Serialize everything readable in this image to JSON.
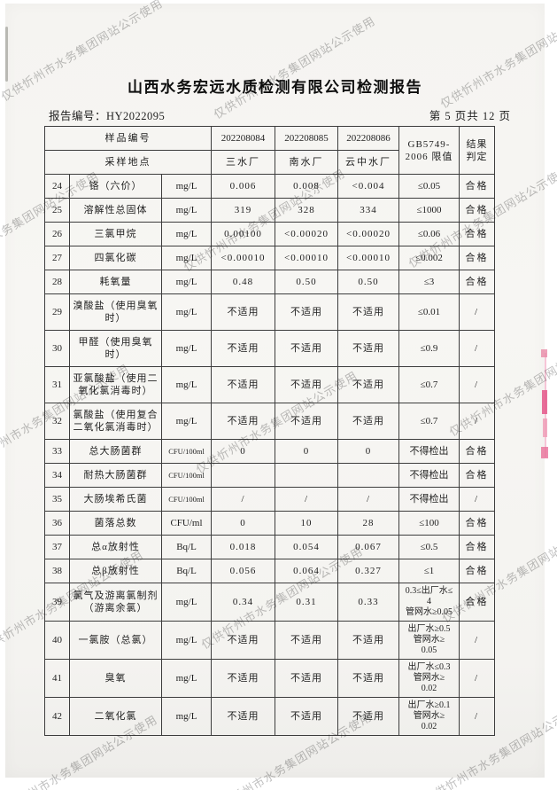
{
  "watermark": {
    "text": "仅供忻州市水务集团网站公示使用",
    "color": "#808080"
  },
  "header": {
    "title": "山西水务宏远水质检测有限公司检测报告",
    "report_no": "报告编号：HY2022095",
    "page_info": "第 5 页共 12 页"
  },
  "table": {
    "header": {
      "row1_label": "样品编号",
      "row2_label": "采样地点",
      "sample_ids": [
        "202208084",
        "202208085",
        "202208086"
      ],
      "locations": [
        "三水厂",
        "南水厂",
        "云中水厂"
      ],
      "limit_line1": "GB5749-",
      "limit_line2": "2006 限值",
      "result_line1": "结果",
      "result_line2": "判定"
    },
    "rows": [
      {
        "no": "24",
        "name": "铬（六价）",
        "unit": "mg/L",
        "v1": "0.006",
        "v2": "0.008",
        "v3": "<0.004",
        "limit": "≤0.05",
        "result": "合格"
      },
      {
        "no": "25",
        "name": "溶解性总固体",
        "unit": "mg/L",
        "v1": "319",
        "v2": "328",
        "v3": "334",
        "limit": "≤1000",
        "result": "合格"
      },
      {
        "no": "26",
        "name": "三氯甲烷",
        "unit": "mg/L",
        "v1": "0.00100",
        "v2": "<0.00020",
        "v3": "<0.00020",
        "limit": "≤0.06",
        "result": "合格"
      },
      {
        "no": "27",
        "name": "四氯化碳",
        "unit": "mg/L",
        "v1": "<0.00010",
        "v2": "<0.00010",
        "v3": "<0.00010",
        "limit": "≤0.002",
        "result": "合格"
      },
      {
        "no": "28",
        "name": "耗氧量",
        "unit": "mg/L",
        "v1": "0.48",
        "v2": "0.50",
        "v3": "0.50",
        "limit": "≤3",
        "result": "合格"
      },
      {
        "no": "29",
        "name": "溴酸盐（使用臭氧时）",
        "unit": "mg/L",
        "v1": "不适用",
        "v2": "不适用",
        "v3": "不适用",
        "limit": "≤0.01",
        "result": "/"
      },
      {
        "no": "30",
        "name": "甲醛（使用臭氧时）",
        "unit": "mg/L",
        "v1": "不适用",
        "v2": "不适用",
        "v3": "不适用",
        "limit": "≤0.9",
        "result": "/"
      },
      {
        "no": "31",
        "name": "亚氯酸盐（使用二氧化氯消毒时）",
        "unit": "mg/L",
        "v1": "不适用",
        "v2": "不适用",
        "v3": "不适用",
        "limit": "≤0.7",
        "result": "/"
      },
      {
        "no": "32",
        "name": "氯酸盐（使用复合二氧化氯消毒时）",
        "unit": "mg/L",
        "v1": "不适用",
        "v2": "不适用",
        "v3": "不适用",
        "limit": "≤0.7",
        "result": "/"
      },
      {
        "no": "33",
        "name": "总大肠菌群",
        "unit": "CFU/100ml",
        "v1": "0",
        "v2": "0",
        "v3": "0",
        "limit": "不得检出",
        "result": "合格"
      },
      {
        "no": "34",
        "name": "耐热大肠菌群",
        "unit": "CFU/100ml",
        "v1": "",
        "v2": "",
        "v3": "",
        "limit": "不得检出",
        "result": "合格"
      },
      {
        "no": "35",
        "name": "大肠埃希氏菌",
        "unit": "CFU/100ml",
        "v1": "/",
        "v2": "/",
        "v3": "/",
        "limit": "不得检出",
        "result": "/"
      },
      {
        "no": "36",
        "name": "菌落总数",
        "unit": "CFU/ml",
        "v1": "0",
        "v2": "10",
        "v3": "28",
        "limit": "≤100",
        "result": "合格"
      },
      {
        "no": "37",
        "name": "总α放射性",
        "unit": "Bq/L",
        "v1": "0.018",
        "v2": "0.054",
        "v3": "0.067",
        "limit": "≤0.5",
        "result": "合格"
      },
      {
        "no": "38",
        "name": "总β放射性",
        "unit": "Bq/L",
        "v1": "0.056",
        "v2": "0.064",
        "v3": "0.327",
        "limit": "≤1",
        "result": "合格"
      },
      {
        "no": "39",
        "name": "氯气及游离氯制剂（游离余氯）",
        "unit": "mg/L",
        "v1": "0.34",
        "v2": "0.31",
        "v3": "0.33",
        "limit": "0.3≤出厂水≤\n4\n管网水≥0.05",
        "result": "合格"
      },
      {
        "no": "40",
        "name": "一氯胺（总氯）",
        "unit": "mg/L",
        "v1": "不适用",
        "v2": "不适用",
        "v3": "不适用",
        "limit": "出厂水≥0.5\n管网水≥\n0.05",
        "result": "/"
      },
      {
        "no": "41",
        "name": "臭氧",
        "unit": "mg/L",
        "v1": "不适用",
        "v2": "不适用",
        "v3": "不适用",
        "limit": "出厂水≤0.3\n管网水≥\n0.02",
        "result": "/"
      },
      {
        "no": "42",
        "name": "二氧化氯",
        "unit": "mg/L",
        "v1": "不适用",
        "v2": "不适用",
        "v3": "不适用",
        "limit": "出厂水≥0.1\n管网水≥\n0.02",
        "result": "/"
      }
    ]
  },
  "seal": {
    "color": "#e4578a"
  }
}
